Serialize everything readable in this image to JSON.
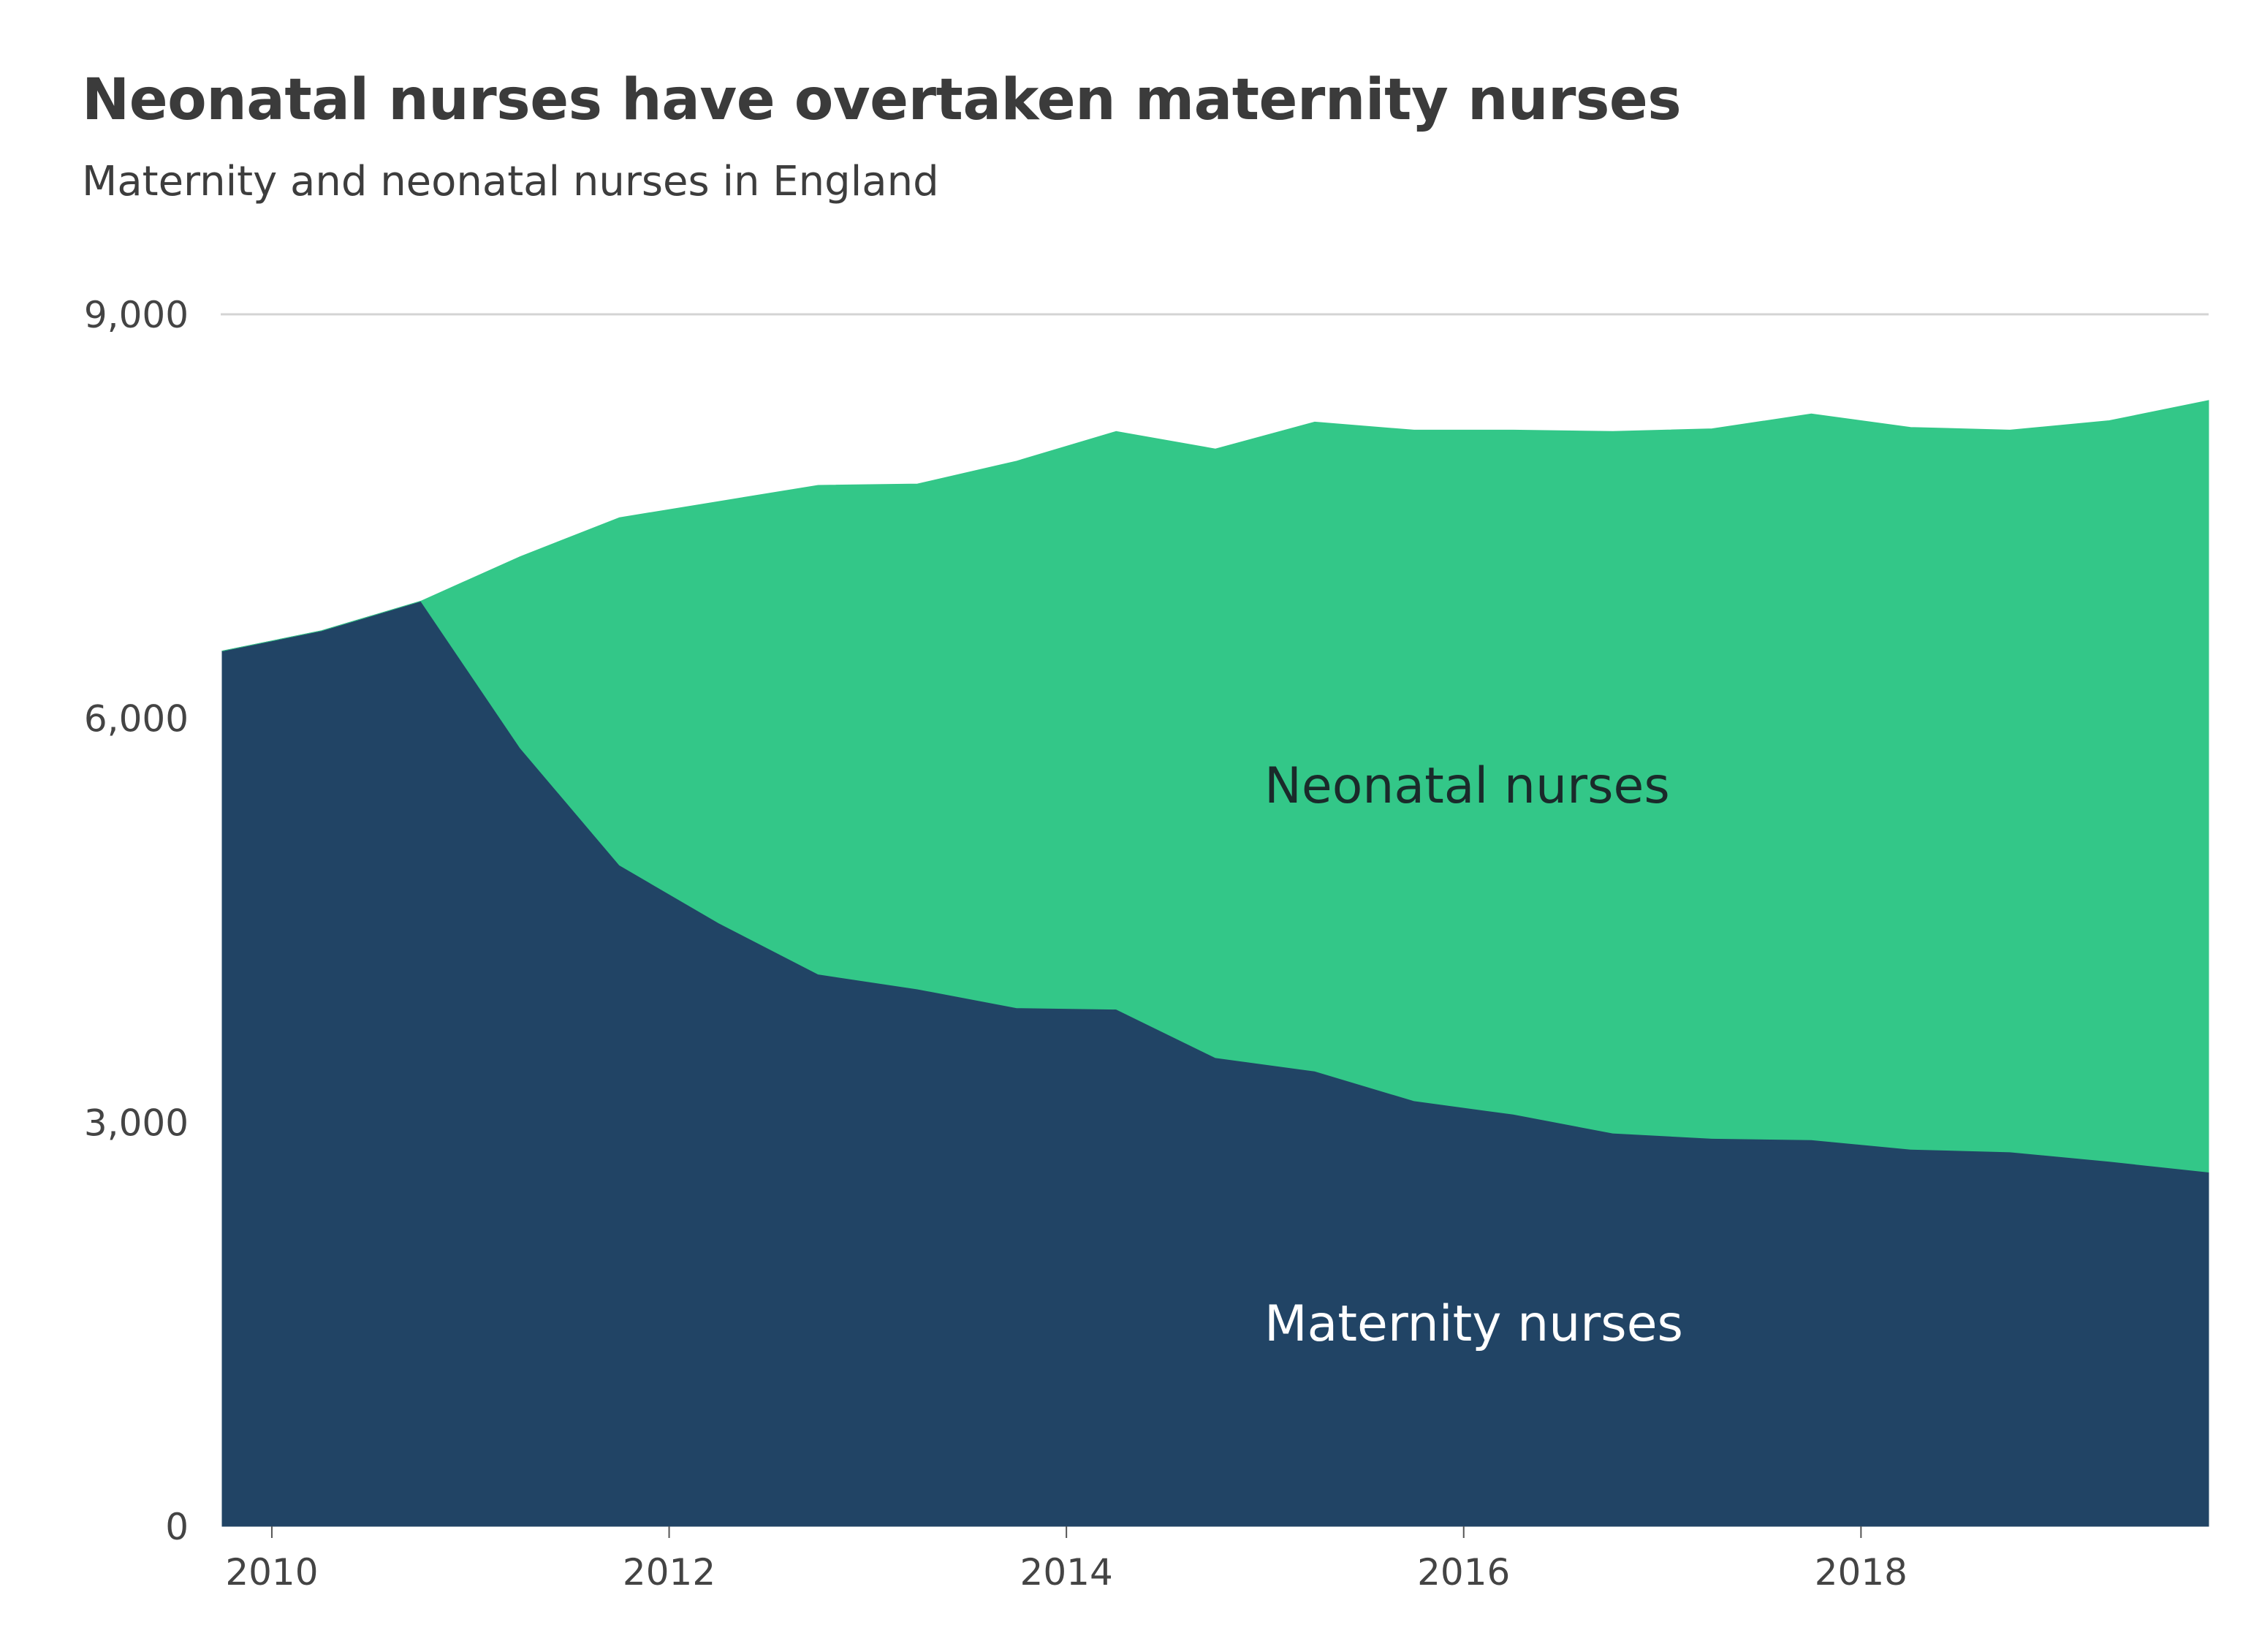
{
  "chart_data": {
    "type": "area",
    "stacked": true,
    "title": "Neonatal nurses have overtaken maternity nurses",
    "subtitle": "Maternity and neonatal nurses in England",
    "xlabel": "",
    "ylabel": "",
    "ylim": [
      0,
      9000
    ],
    "xlim": [
      2009.75,
      2019.75
    ],
    "y_ticks": [
      0,
      3000,
      6000,
      9000
    ],
    "y_tick_labels": [
      "0",
      "3,000",
      "6,000",
      "9,000"
    ],
    "x_ticks": [
      2010,
      2012,
      2014,
      2016,
      2018
    ],
    "x_tick_labels": [
      "2010",
      "2012",
      "2014",
      "2016",
      "2018"
    ],
    "grid": "top reference line only",
    "x": [
      2009.75,
      2010.25,
      2010.75,
      2011.25,
      2011.75,
      2012.25,
      2012.75,
      2013.25,
      2013.75,
      2014.25,
      2014.75,
      2015.25,
      2015.75,
      2016.25,
      2016.75,
      2017.25,
      2017.75,
      2018.25,
      2018.75,
      2019.25,
      2019.75
    ],
    "series": [
      {
        "name": "Maternity nurses",
        "color": "#214465",
        "label_color": "#ffffff",
        "values": [
          6500,
          6650,
          6870,
          5780,
          4910,
          4480,
          4100,
          3990,
          3850,
          3840,
          3480,
          3380,
          3160,
          3060,
          2920,
          2880,
          2870,
          2800,
          2780,
          2710,
          2630
        ]
      },
      {
        "name": "Neonatal nurses",
        "color": "#33c788",
        "label_color": "#1a2a2a",
        "values": [
          0,
          0,
          0,
          1420,
          2580,
          3130,
          3630,
          3750,
          4060,
          4290,
          4520,
          4820,
          4980,
          5080,
          5210,
          5270,
          5390,
          5360,
          5360,
          5500,
          5730
        ]
      }
    ]
  }
}
